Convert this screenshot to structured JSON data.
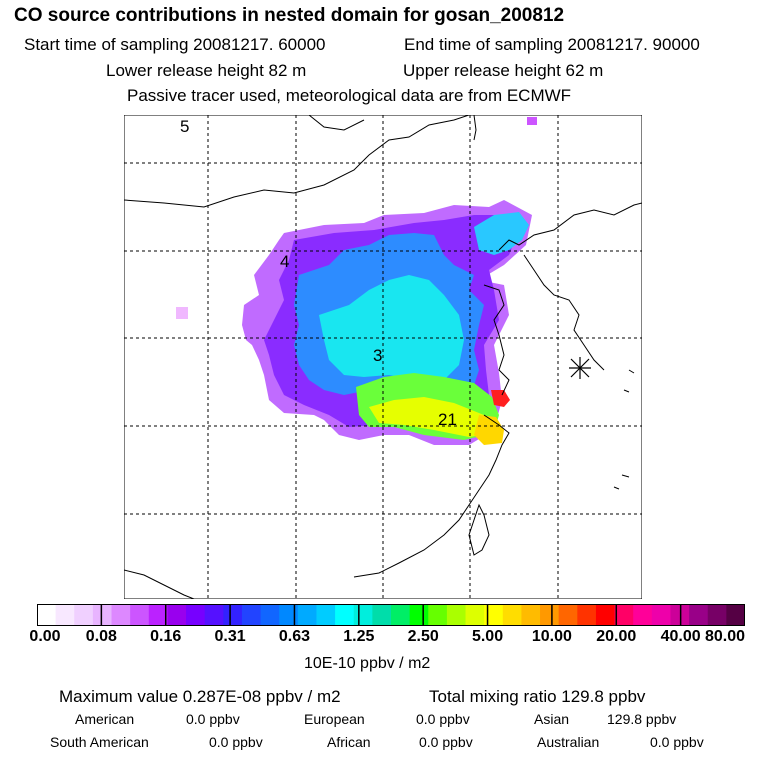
{
  "header": {
    "title": "CO  source contributions in nested domain for gosan_200812",
    "start_sampling": "Start time of sampling 20081217. 60000",
    "end_sampling": "End time of sampling 20081217. 90000",
    "lower_release": "Lower release height   82 m",
    "upper_release": "Upper release height   62 m",
    "tracer_note": "Passive tracer used, meteorological data are from ECMWF"
  },
  "map": {
    "labels": [
      "5",
      "4",
      "3",
      "21"
    ],
    "receptor_marker": "asterisk",
    "colors": {
      "land_outline": "#000000",
      "grid": "#000000"
    }
  },
  "colorbar": {
    "tick_labels": [
      "0.00",
      "0.08",
      "0.16",
      "0.31",
      "0.63",
      "1.25",
      "2.50",
      "5.00",
      "10.00",
      "20.00",
      "40.00",
      "80.00"
    ],
    "unit": "10E-10 ppbv / m2",
    "colors": [
      "#ffffff",
      "#f8e8ff",
      "#f0d0ff",
      "#e8b4ff",
      "#dd88ff",
      "#cc55ff",
      "#bb22ff",
      "#9900ee",
      "#7700ff",
      "#5511ff",
      "#3322ff",
      "#2244ff",
      "#1166ff",
      "#0088ff",
      "#00aaff",
      "#00ccff",
      "#00ffff",
      "#00eedd",
      "#00ddaa",
      "#00ee66",
      "#00ff00",
      "#66ff00",
      "#aaff00",
      "#ddff00",
      "#ffff00",
      "#ffdd00",
      "#ffbb00",
      "#ff9900",
      "#ff6600",
      "#ff3300",
      "#ff0000",
      "#ff0066",
      "#ff0099",
      "#ee00aa",
      "#cc0099",
      "#990088",
      "#770066",
      "#550044"
    ]
  },
  "summary": {
    "max_value": "Maximum value  0.287E-08 ppbv / m2",
    "total_mixing": "Total mixing ratio      129.8 ppbv",
    "american_label": "American",
    "american_value": "0.0 ppbv",
    "european_label": "European",
    "european_value": "0.0 ppbv",
    "asian_label": "Asian",
    "asian_value": "129.8 ppbv",
    "south_american_label": "South American",
    "south_american_value": "0.0 ppbv",
    "african_label": "African",
    "african_value": "0.0 ppbv",
    "australian_label": "Australian",
    "australian_value": "0.0 ppbv"
  }
}
